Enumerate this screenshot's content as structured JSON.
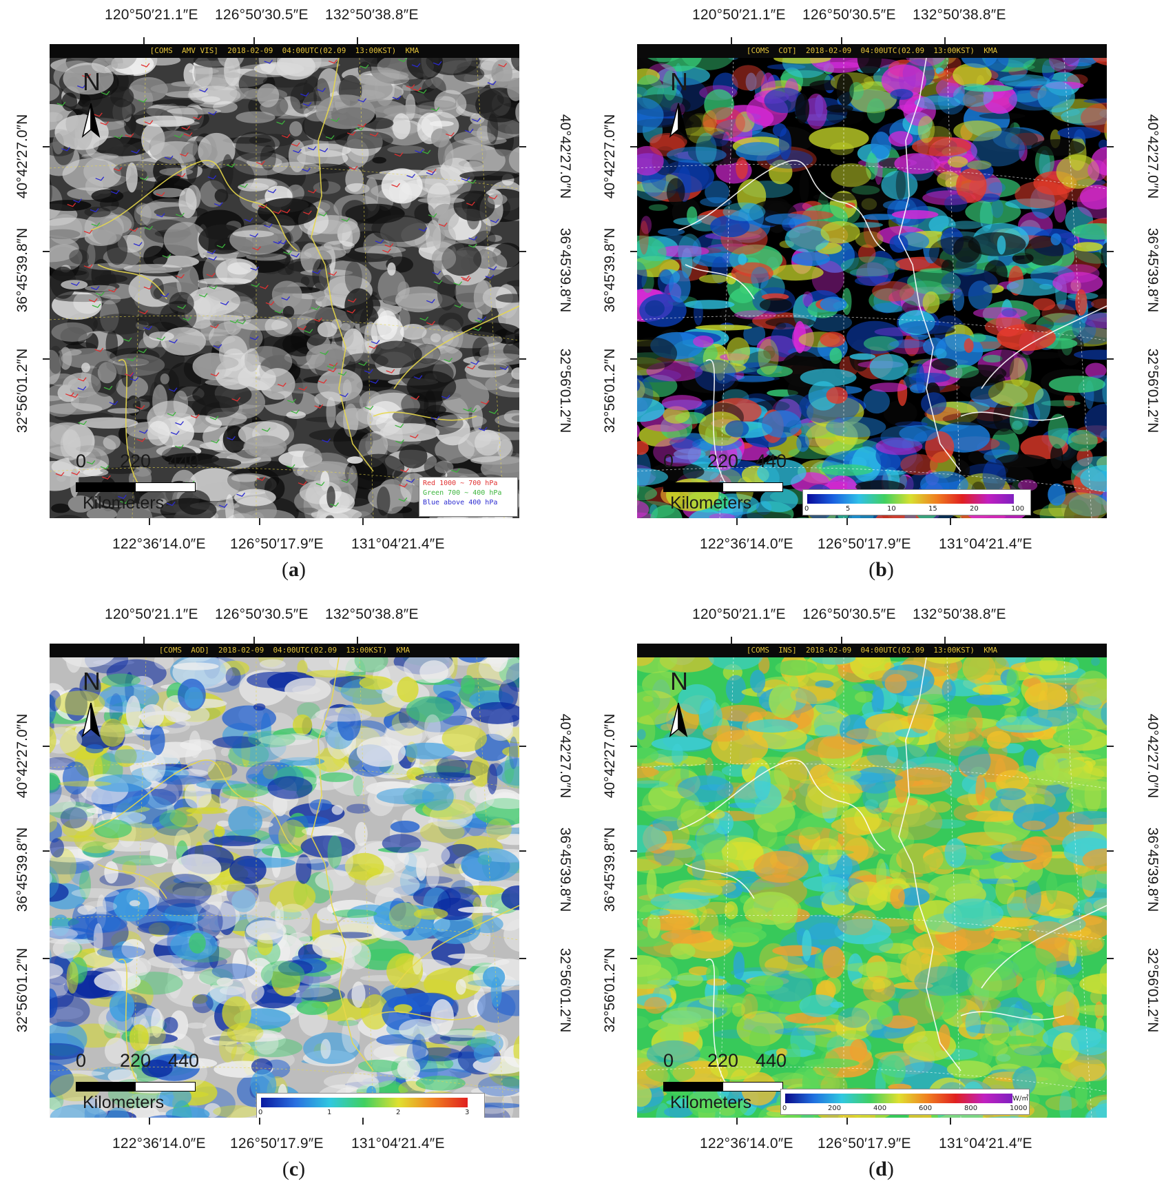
{
  "top_lon_labels": [
    "120°50′21.1″E",
    "126°50′30.5″E",
    "132°50′38.8″E"
  ],
  "bottom_lon_labels": [
    "122°36′14.0″E",
    "126°50′17.9″E",
    "131°04′21.4″E"
  ],
  "lat_labels_left": [
    "40°42′27.0″N",
    "36°45′39.8″N",
    "32°56′01.2″N"
  ],
  "lat_labels_right": [
    "40°42′27.0″N",
    "36°45′39.8″N",
    "32°56′01.2″N"
  ],
  "north_letter": "N",
  "scale": {
    "zero": "0",
    "mid": "220",
    "max": "440",
    "unit": "Kilometers"
  },
  "panels": [
    {
      "header": "[COMS  AMV VIS]  2018-02-09  04:00UTC(02.09  13:00KST)  KMA",
      "caption_open": "(",
      "caption_letter": "a",
      "caption_close": ")",
      "scheme": "amv",
      "legend": [
        "Red 1000 ~ 700 hPa",
        "Green 700 ~ 400 hPa",
        "Blue above 400 hPa"
      ],
      "legend_colors": [
        "#e03030",
        "#3cb43c",
        "#2a2ad0"
      ]
    },
    {
      "header": "[COMS  COT]  2018-02-09  04:00UTC(02.09  13:00KST)  KMA",
      "caption_open": "(",
      "caption_letter": "b",
      "caption_close": ")",
      "scheme": "cot",
      "colorbar": [
        "0",
        "5",
        "10",
        "15",
        "20",
        "100"
      ]
    },
    {
      "header": "[COMS  AOD]  2018-02-09  04:00UTC(02.09  13:00KST)  KMA",
      "caption_open": "(",
      "caption_letter": "c",
      "caption_close": ")",
      "scheme": "aod",
      "colorbar": [
        "0",
        "1",
        "2",
        "3"
      ]
    },
    {
      "header": "[COMS  INS]  2018-02-09  04:00UTC(02.09  13:00KST)  KMA",
      "caption_open": "(",
      "caption_letter": "d",
      "caption_close": ")",
      "scheme": "ins",
      "colorbar": [
        "0",
        "200",
        "400",
        "600",
        "800",
        "1000"
      ],
      "colorbar_unit": "W/㎡"
    }
  ]
}
